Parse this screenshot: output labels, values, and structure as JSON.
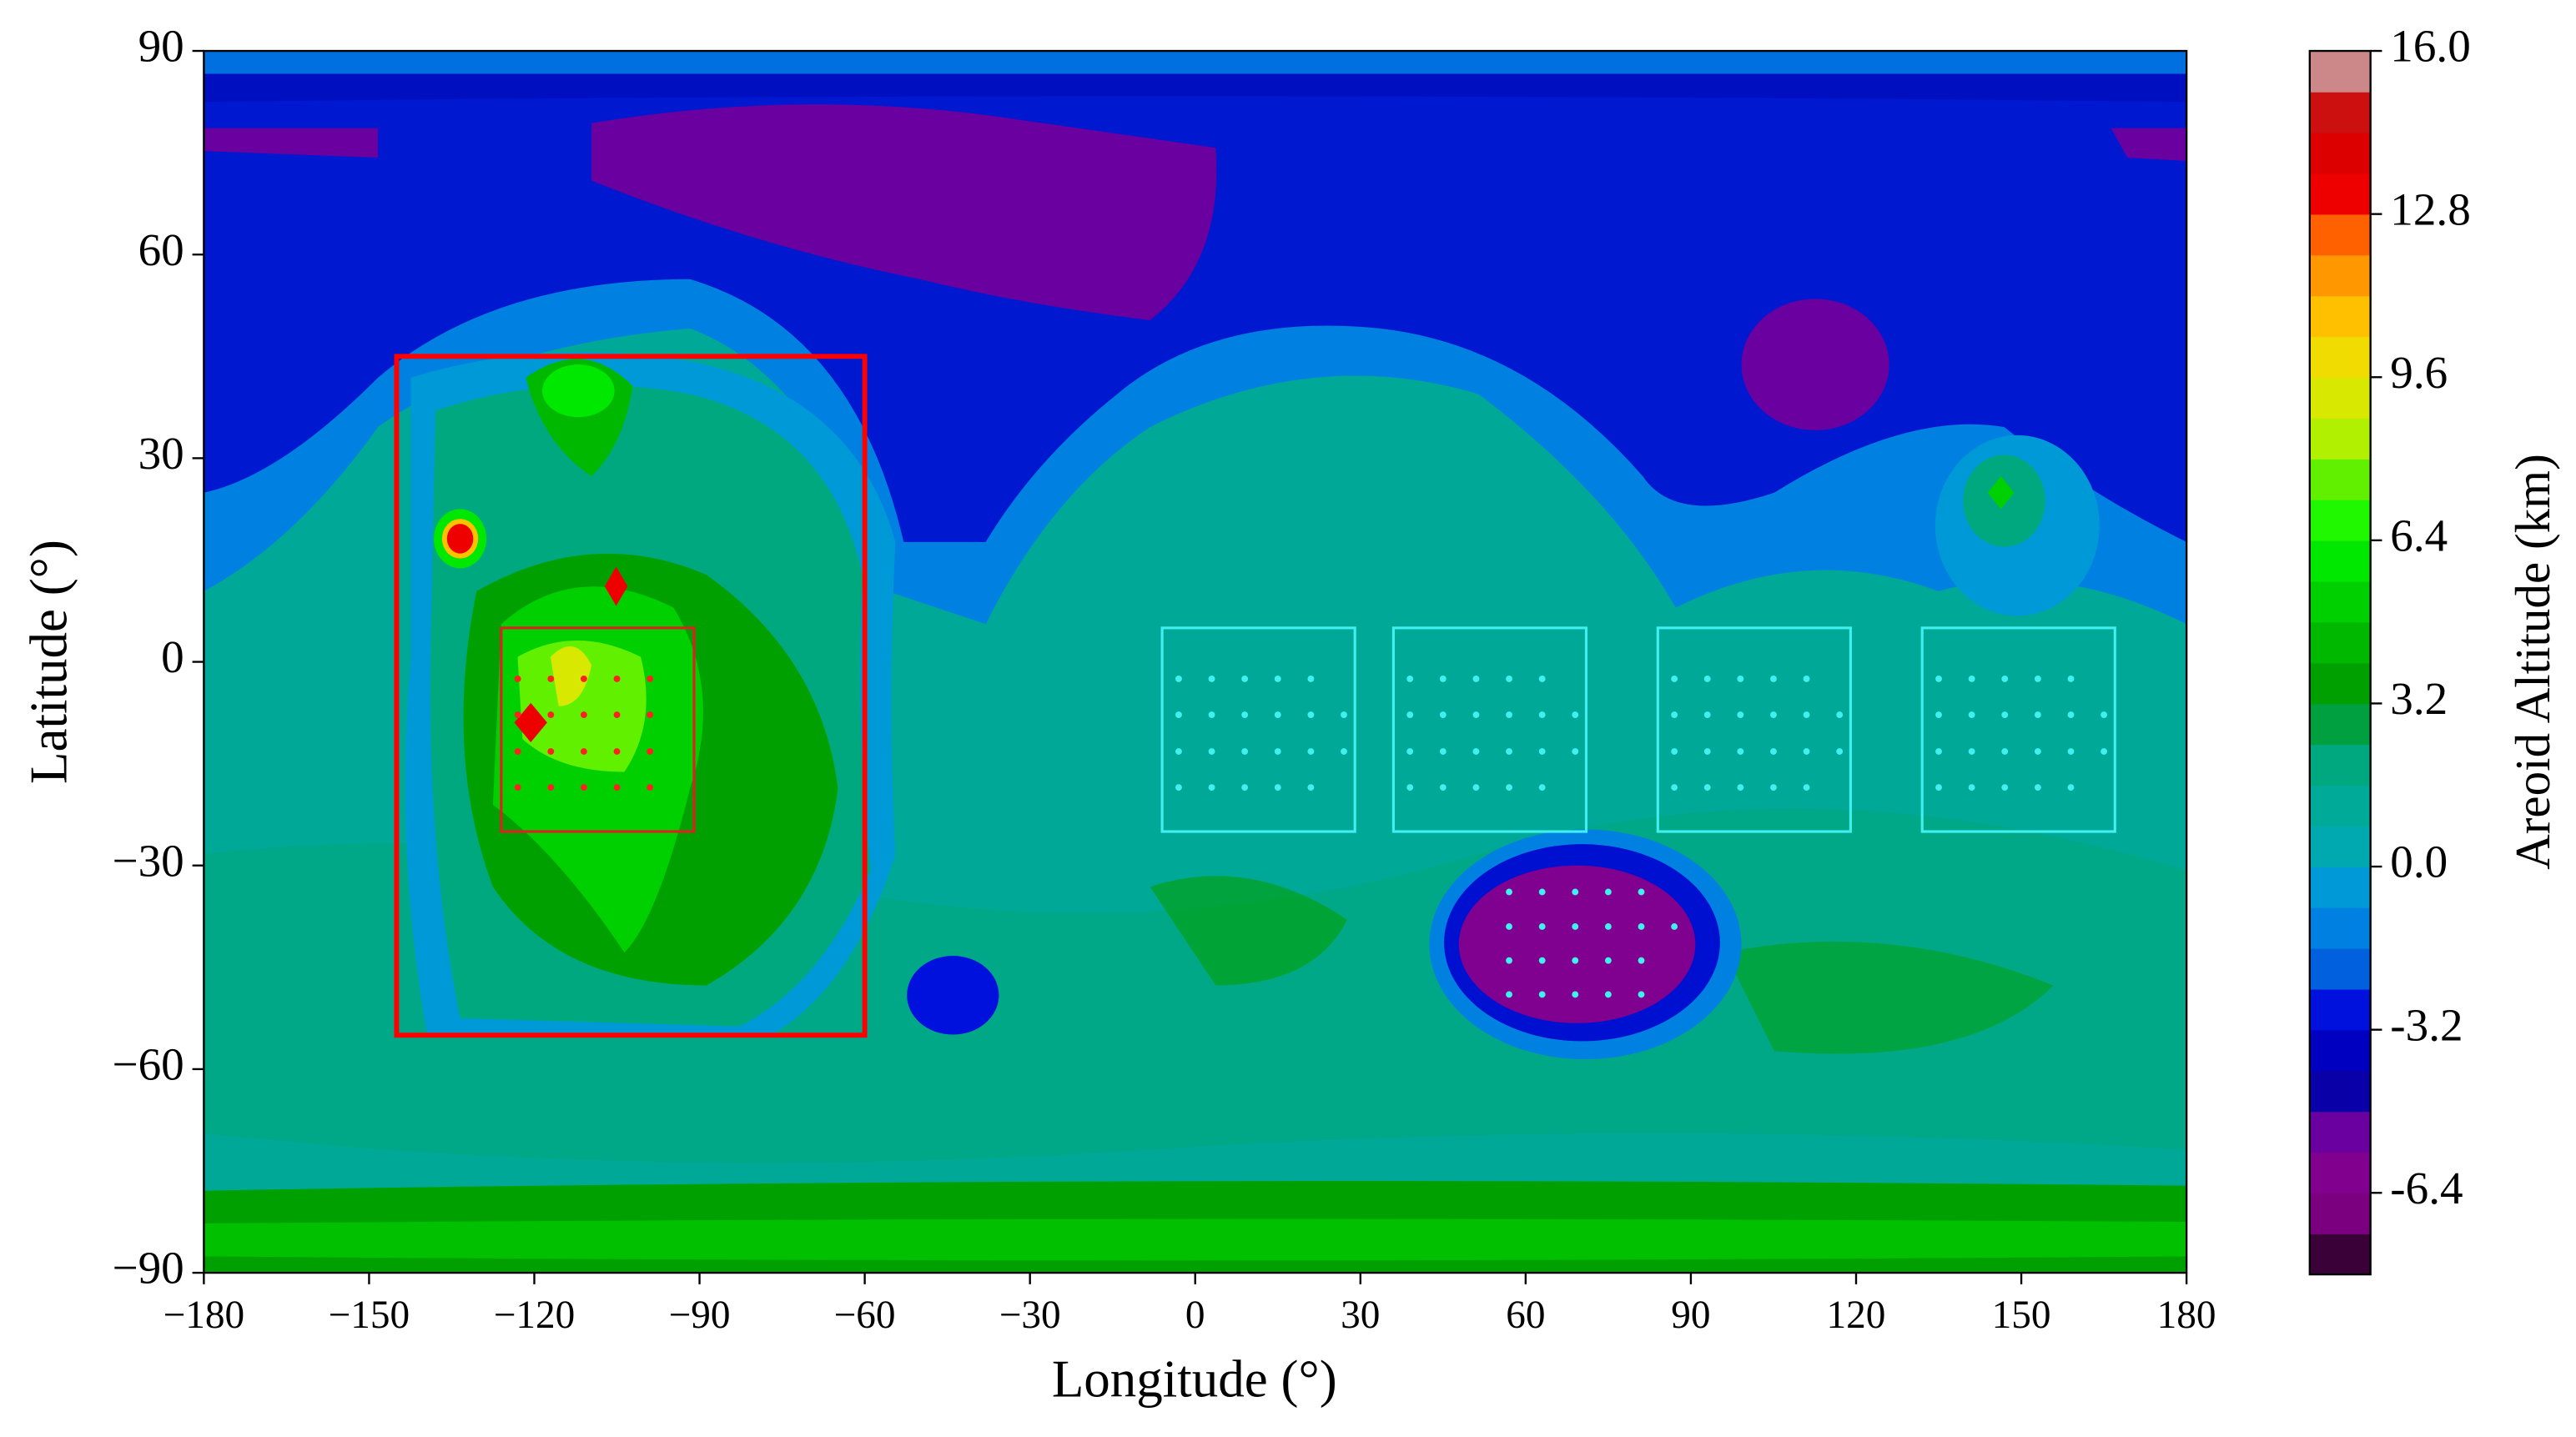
{
  "chart_data": {
    "type": "contour",
    "xlabel": "Longitude (°)",
    "ylabel": "Latitude (°)",
    "xlim": [
      -180,
      180
    ],
    "ylim": [
      -90,
      90
    ],
    "xticks": [
      {
        "value": -180,
        "label": "−180"
      },
      {
        "value": -150,
        "label": "−150"
      },
      {
        "value": -120,
        "label": "−120"
      },
      {
        "value": -90,
        "label": "−90"
      },
      {
        "value": -60,
        "label": "−60"
      },
      {
        "value": -30,
        "label": "−30"
      },
      0,
      30,
      60,
      90,
      120,
      150,
      180
    ],
    "yticks": [
      {
        "value": -90,
        "label": "−90"
      },
      {
        "value": -60,
        "label": "−60"
      },
      {
        "value": -30,
        "label": "−30"
      },
      0,
      30,
      60,
      90
    ],
    "colorbar": {
      "label": "Areoid Altitude (km)",
      "lim": [
        -8,
        16
      ],
      "ticks": [
        {
          "value": 16,
          "label": "16.0"
        },
        12.8,
        9.6,
        6.4,
        3.2,
        {
          "value": 0,
          "label": "0.0"
        },
        -3.2,
        -6.4
      ],
      "colors": [
        "#3a0038",
        "#7a0080",
        "#82008e",
        "#6a00a0",
        "#0a00a8",
        "#0000c0",
        "#0010dd",
        "#0060dd",
        "#0080e0",
        "#0099d8",
        "#00a8b0",
        "#00aa98",
        "#00a880",
        "#00a040",
        "#00a000",
        "#00b800",
        "#00d000",
        "#00e800",
        "#20f800",
        "#60f000",
        "#b0f000",
        "#d8e800",
        "#f0dc00",
        "#ffc000",
        "#ff9800",
        "#ff6000",
        "#ee0000",
        "#dd0000",
        "#cc1010",
        "#cc8888"
      ]
    },
    "regions": [
      {
        "color": "#ff0000",
        "x": [
          -145,
          -60
        ],
        "y": [
          -55,
          45
        ]
      },
      {
        "color": "#e02020",
        "x": [
          -126,
          -91
        ],
        "y": [
          -25,
          5
        ]
      },
      {
        "color": "#40f0f0",
        "x": [
          -6,
          29
        ],
        "y": [
          -25,
          5
        ]
      },
      {
        "color": "#40f0f0",
        "x": [
          36,
          71
        ],
        "y": [
          -25,
          5
        ]
      },
      {
        "color": "#40f0f0",
        "x": [
          84,
          119
        ],
        "y": [
          -25,
          5
        ]
      },
      {
        "color": "#40f0f0",
        "x": [
          132,
          167
        ],
        "y": [
          -25,
          5
        ]
      }
    ],
    "series": [
      {
        "color": "#ff2020",
        "x": [
          -123,
          -117,
          -111,
          -105,
          -99,
          -123,
          -117,
          -111,
          -105,
          -99,
          -123,
          -117,
          -111,
          -105,
          -99,
          -123,
          -117,
          -111,
          -105,
          -99
        ],
        "y": [
          -2.5,
          -2.5,
          -2.5,
          -2.5,
          -2.5,
          -7.8,
          -7.8,
          -7.8,
          -7.8,
          -7.8,
          -13.2,
          -13.2,
          -13.2,
          -13.2,
          -13.2,
          -18.5,
          -18.5,
          -18.5,
          -18.5,
          -18.5
        ]
      },
      {
        "color": "#40f0f0",
        "x": [
          -3,
          3,
          9,
          15,
          21,
          -3,
          3,
          9,
          15,
          21,
          27,
          -3,
          3,
          9,
          15,
          21,
          27,
          -3,
          3,
          9,
          15,
          21
        ],
        "y": [
          -2.5,
          -2.5,
          -2.5,
          -2.5,
          -2.5,
          -7.8,
          -7.8,
          -7.8,
          -7.8,
          -7.8,
          -7.8,
          -13.2,
          -13.2,
          -13.2,
          -13.2,
          -13.2,
          -13.2,
          -18.5,
          -18.5,
          -18.5,
          -18.5,
          -18.5
        ]
      },
      {
        "color": "#40f0f0",
        "x": [
          39,
          45,
          51,
          57,
          63,
          39,
          45,
          51,
          57,
          63,
          69,
          39,
          45,
          51,
          57,
          63,
          69,
          39,
          45,
          51,
          57,
          63
        ],
        "y": [
          -2.5,
          -2.5,
          -2.5,
          -2.5,
          -2.5,
          -7.8,
          -7.8,
          -7.8,
          -7.8,
          -7.8,
          -7.8,
          -13.2,
          -13.2,
          -13.2,
          -13.2,
          -13.2,
          -13.2,
          -18.5,
          -18.5,
          -18.5,
          -18.5,
          -18.5
        ]
      },
      {
        "color": "#40f0f0",
        "x": [
          87,
          93,
          99,
          105,
          111,
          87,
          93,
          99,
          105,
          111,
          117,
          87,
          93,
          99,
          105,
          111,
          117,
          87,
          93,
          99,
          105,
          111
        ],
        "y": [
          -2.5,
          -2.5,
          -2.5,
          -2.5,
          -2.5,
          -7.8,
          -7.8,
          -7.8,
          -7.8,
          -7.8,
          -7.8,
          -13.2,
          -13.2,
          -13.2,
          -13.2,
          -13.2,
          -13.2,
          -18.5,
          -18.5,
          -18.5,
          -18.5,
          -18.5
        ]
      },
      {
        "color": "#40f0f0",
        "x": [
          135,
          141,
          147,
          153,
          159,
          135,
          141,
          147,
          153,
          159,
          165,
          135,
          141,
          147,
          153,
          159,
          165,
          135,
          141,
          147,
          153,
          159
        ],
        "y": [
          -2.5,
          -2.5,
          -2.5,
          -2.5,
          -2.5,
          -7.8,
          -7.8,
          -7.8,
          -7.8,
          -7.8,
          -7.8,
          -13.2,
          -13.2,
          -13.2,
          -13.2,
          -13.2,
          -13.2,
          -18.5,
          -18.5,
          -18.5,
          -18.5,
          -18.5
        ]
      },
      {
        "color": "#40f0f0",
        "x": [
          57,
          63,
          69,
          75,
          81,
          57,
          63,
          69,
          75,
          81,
          87,
          57,
          63,
          69,
          75,
          81,
          57,
          63,
          69,
          75,
          81
        ],
        "y": [
          -33.9,
          -33.9,
          -33.9,
          -33.9,
          -33.9,
          -39,
          -39,
          -39,
          -39,
          -39,
          -39,
          -44,
          -44,
          -44,
          -44,
          -44,
          -49,
          -49,
          -49,
          -49,
          -49
        ]
      }
    ]
  }
}
